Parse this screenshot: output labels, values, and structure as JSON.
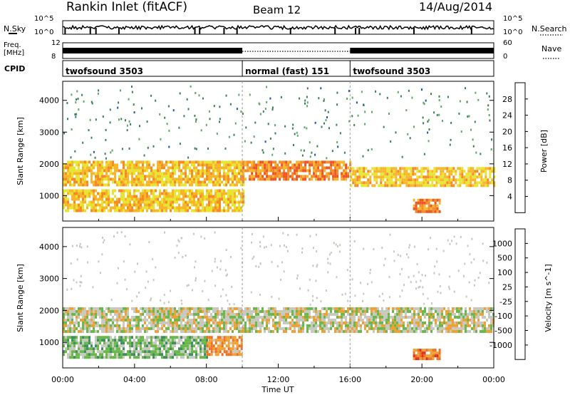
{
  "header": {
    "station": "Rankin Inlet (fitACF)",
    "beam": "Beam 12",
    "date": "14/Aug/2014"
  },
  "side_labels": {
    "nsky": "N.Sky",
    "nsearch": "N.Search",
    "freq": "Freq.",
    "freq_unit": "[MHz]",
    "nave": "Nave",
    "cpid": "CPID",
    "nsky_top": "10^5",
    "nsky_bottom": "10^0",
    "nsearch_top": "10^5",
    "nsearch_bottom": "10^0",
    "freq_top": "12",
    "freq_bottom": "8",
    "nave_top": "60",
    "nave_bottom": "0"
  },
  "cpid_segments": [
    {
      "label": "twofsound 3503",
      "start": 0,
      "end": 10
    },
    {
      "label": "normal (fast) 151",
      "start": 10,
      "end": 16
    },
    {
      "label": "twofsound 3503",
      "start": 16,
      "end": 24
    }
  ],
  "axes": {
    "x_label": "Time UT",
    "x_ticks": [
      "00:00",
      "04:00",
      "08:00",
      "12:00",
      "16:00",
      "20:00",
      "00:00"
    ],
    "y_label": "Slant Range [km]",
    "y_ticks": [
      "1000",
      "2000",
      "3000",
      "4000"
    ]
  },
  "power_colorbar": {
    "label": "Power [dB]",
    "ticks": [
      "4",
      "8",
      "12",
      "16",
      "20",
      "24",
      "28"
    ],
    "colors": [
      "#1f2ed8",
      "#1f57a8",
      "#3d7f5c",
      "#5fa868",
      "#8cd04a",
      "#e8e530",
      "#f7b62a",
      "#f58a26",
      "#ee5424",
      "#dc1f1f"
    ]
  },
  "velocity_colorbar": {
    "label": "Velocity [m s^-1]",
    "ticks": [
      "1000",
      "500",
      "100",
      "25",
      "-25",
      "-100",
      "-500",
      "-1000"
    ],
    "colors": [
      "#1f3da8",
      "#2d6e9a",
      "#3f8f60",
      "#69b84a",
      "#c8c8c0",
      "#f0a030",
      "#f07020",
      "#e03020",
      "#e00000"
    ]
  },
  "chart_data": {
    "type": "heatmap",
    "title": "Rankin Inlet (fitACF)",
    "xlabel": "Time UT",
    "ylabel": "Slant Range [km]",
    "xlim": [
      0,
      24
    ],
    "ylim": [
      200,
      4600
    ],
    "panels": [
      {
        "name": "Power",
        "colorbar_range": [
          0,
          32
        ],
        "bands": [
          {
            "start": 0,
            "end": 10,
            "range": [
              1300,
              2100
            ],
            "value": 20
          },
          {
            "start": 10,
            "end": 16,
            "range": [
              1500,
              2100
            ],
            "value": 24
          },
          {
            "start": 16,
            "end": 24,
            "range": [
              1300,
              1900
            ],
            "value": 20
          },
          {
            "start": 0,
            "end": 10,
            "range": [
              500,
              1200
            ],
            "value": 20
          },
          {
            "start": 19.5,
            "end": 21,
            "range": [
              500,
              900
            ],
            "value": 24
          }
        ]
      },
      {
        "name": "Velocity",
        "colorbar_range": [
          -1000,
          1000
        ],
        "bands": [
          {
            "start": 0,
            "end": 24,
            "range": [
              1300,
              2100
            ],
            "value": 0
          },
          {
            "start": 0,
            "end": 8,
            "range": [
              500,
              1200
            ],
            "value": 200
          },
          {
            "start": 8,
            "end": 10,
            "range": [
              600,
              1200
            ],
            "value": -300
          },
          {
            "start": 19.5,
            "end": 21,
            "range": [
              500,
              800
            ],
            "value": -400
          }
        ]
      }
    ]
  }
}
